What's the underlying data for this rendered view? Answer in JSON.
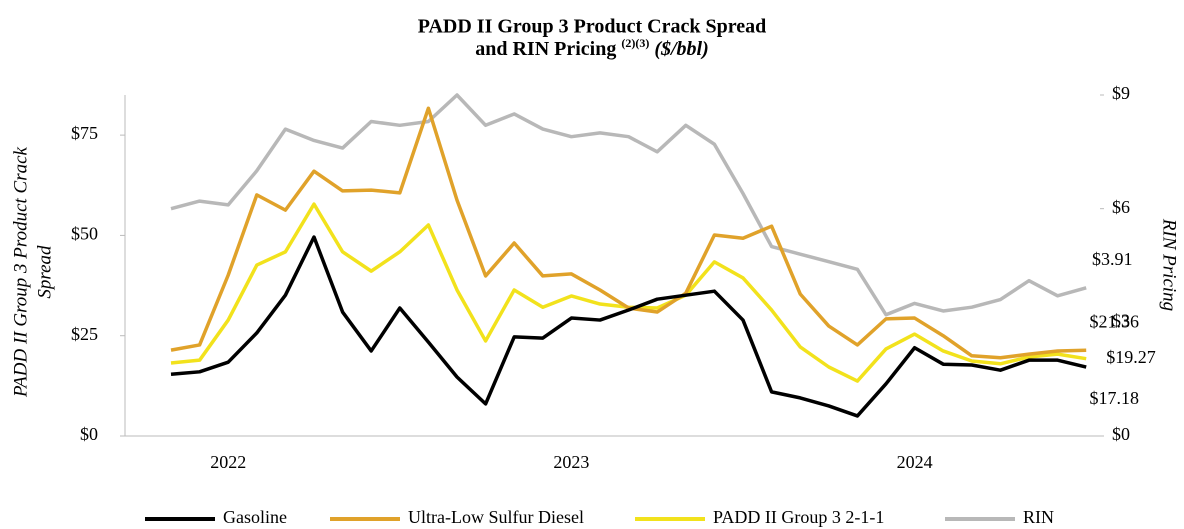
{
  "chart_data": {
    "type": "line",
    "title": "PADD II Group 3 Product Crack Spread",
    "title_line2": "and RIN Pricing",
    "title_note": "(2)(3)",
    "title_unit": "($/bbl)",
    "ylabel": [
      "PADD II Group 3 Product Crack",
      "Spread"
    ],
    "y2label": "RIN Pricing",
    "categories": [
      null,
      null,
      "2022",
      null,
      null,
      null,
      null,
      null,
      null,
      null,
      null,
      null,
      null,
      null,
      "2023",
      null,
      null,
      null,
      null,
      null,
      null,
      null,
      null,
      null,
      null,
      null,
      "2024",
      null,
      null,
      null,
      null,
      null,
      null
    ],
    "ylim": [
      0,
      85
    ],
    "yticks": [
      {
        "value": 0,
        "label": "$0"
      },
      {
        "value": 25,
        "label": "$25"
      },
      {
        "value": 50,
        "label": "$50"
      },
      {
        "value": 75,
        "label": "$75"
      }
    ],
    "y2lim": [
      0,
      9
    ],
    "y2ticks": [
      {
        "value": 0,
        "label": "$0"
      },
      {
        "value": 3,
        "label": "$3"
      },
      {
        "value": 6,
        "label": "$6"
      },
      {
        "value": 9,
        "label": "$9"
      }
    ],
    "legend": "bottom",
    "series": [
      {
        "name": "Gasoline",
        "color": "#000000",
        "values": [
          15.4,
          16.0,
          18.4,
          25.7,
          35.1,
          49.6,
          30.9,
          21.2,
          31.9,
          23.4,
          14.7,
          8.0,
          24.7,
          24.4,
          29.4,
          28.9,
          31.4,
          34.1,
          35.1,
          36.1,
          28.9,
          11.0,
          9.5,
          7.5,
          5.0,
          13.0,
          22.0,
          17.9,
          17.7,
          16.4,
          18.9,
          18.9,
          17.18
        ],
        "value_labels": [
          null,
          null,
          null,
          null,
          null,
          null,
          null,
          null,
          null,
          null,
          null,
          null,
          null,
          null,
          null,
          null,
          null,
          null,
          null,
          null,
          null,
          null,
          null,
          null,
          null,
          null,
          null,
          null,
          null,
          null,
          null,
          null,
          "$17.18"
        ]
      },
      {
        "name": "Ultra-Low Sulfur Diesel",
        "color": "#e0a22a",
        "values": [
          21.4,
          22.7,
          40.1,
          60.1,
          56.3,
          66.0,
          61.1,
          61.3,
          60.6,
          81.7,
          58.8,
          39.9,
          48.1,
          39.9,
          40.4,
          36.4,
          31.9,
          30.9,
          35.6,
          50.1,
          49.3,
          52.3,
          35.4,
          27.4,
          22.7,
          29.2,
          29.4,
          25.0,
          20.0,
          19.5,
          20.4,
          21.2,
          21.36
        ],
        "value_labels": [
          null,
          null,
          null,
          null,
          null,
          null,
          null,
          null,
          null,
          null,
          null,
          null,
          null,
          null,
          null,
          null,
          null,
          null,
          null,
          null,
          null,
          null,
          null,
          null,
          null,
          null,
          null,
          null,
          null,
          null,
          null,
          null,
          "$21.36"
        ]
      },
      {
        "name": "PADD II Group 3 2-1-1",
        "color": "#f2e21c",
        "values": [
          18.2,
          18.9,
          28.9,
          42.6,
          45.9,
          57.8,
          45.9,
          41.1,
          45.9,
          52.6,
          36.4,
          23.7,
          36.4,
          32.1,
          34.9,
          32.9,
          32.1,
          31.9,
          35.1,
          43.4,
          39.4,
          31.4,
          22.2,
          17.2,
          13.7,
          21.7,
          25.4,
          21.2,
          18.7,
          18.0,
          19.7,
          20.4,
          19.27
        ],
        "value_labels": [
          null,
          null,
          null,
          null,
          null,
          null,
          null,
          null,
          null,
          null,
          null,
          null,
          null,
          null,
          null,
          null,
          null,
          null,
          null,
          null,
          null,
          null,
          null,
          null,
          null,
          null,
          null,
          null,
          null,
          null,
          null,
          null,
          "$19.27"
        ]
      },
      {
        "name": "RIN",
        "color": "#b8b8b8",
        "axis": "y2",
        "values": [
          6.0,
          6.2,
          6.1,
          7.0,
          8.1,
          7.8,
          7.6,
          8.3,
          8.2,
          8.3,
          9.0,
          8.2,
          8.5,
          8.1,
          7.9,
          8.0,
          7.9,
          7.5,
          8.2,
          7.7,
          6.4,
          5.0,
          4.8,
          4.6,
          4.4,
          3.2,
          3.5,
          3.3,
          3.4,
          3.6,
          4.1,
          3.7,
          3.91
        ],
        "value_labels": [
          null,
          null,
          null,
          null,
          null,
          null,
          null,
          null,
          null,
          null,
          null,
          null,
          null,
          null,
          null,
          null,
          null,
          null,
          null,
          null,
          null,
          null,
          null,
          null,
          null,
          null,
          null,
          null,
          null,
          null,
          null,
          null,
          "$3.91"
        ]
      }
    ]
  }
}
